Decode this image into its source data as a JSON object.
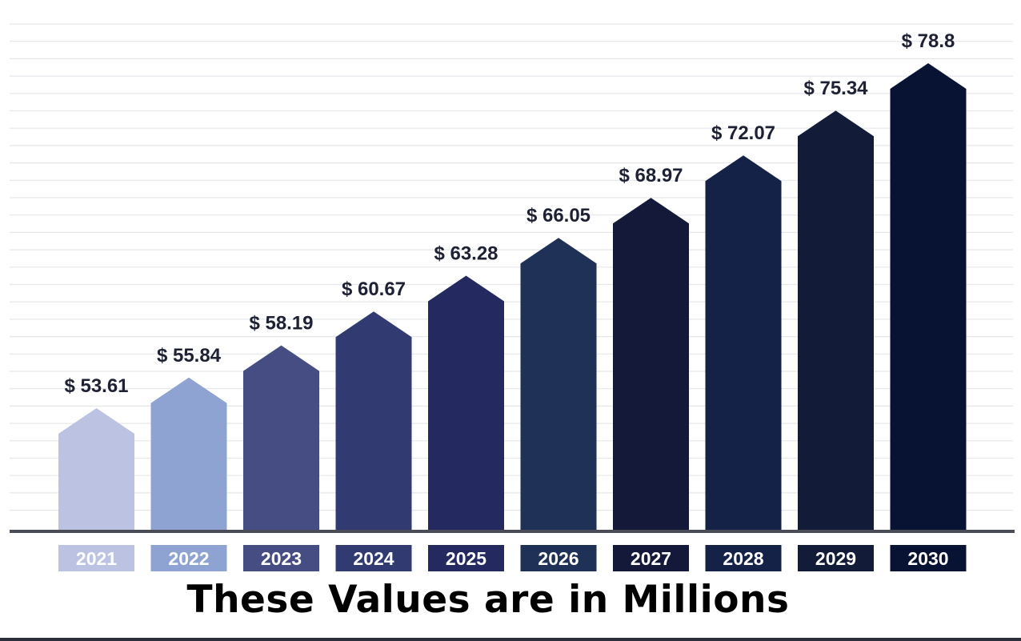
{
  "chart_data": {
    "type": "bar",
    "categories": [
      "2021",
      "2022",
      "2023",
      "2024",
      "2025",
      "2026",
      "2027",
      "2028",
      "2029",
      "2030"
    ],
    "values": [
      53.61,
      55.84,
      58.19,
      60.67,
      63.28,
      66.05,
      68.97,
      72.07,
      75.34,
      78.8
    ],
    "value_labels": [
      "$ 53.61",
      "$ 55.84",
      "$ 58.19",
      "$ 60.67",
      "$ 63.28",
      "$ 66.05",
      "$ 68.97",
      "$ 72.07",
      "$ 75.34",
      "$ 78.8"
    ],
    "title": "",
    "xlabel": "",
    "ylabel": "",
    "grid": true,
    "bar_shape": "arrow",
    "colors": [
      "#bcc3e2",
      "#8fa3d3",
      "#464d82",
      "#313b71",
      "#242a5f",
      "#1f3157",
      "#14193a",
      "#132246",
      "#121c38",
      "#081232"
    ]
  },
  "caption": "These Values are in Millions"
}
